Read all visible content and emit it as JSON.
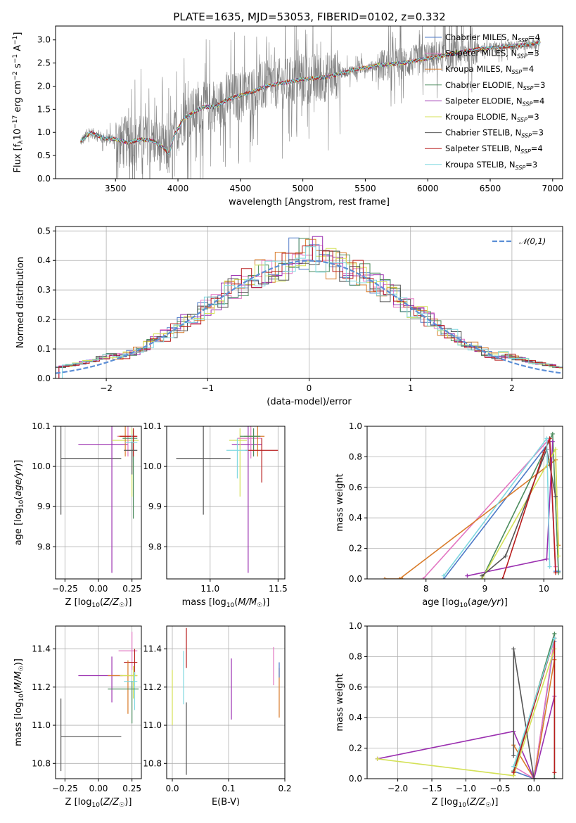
{
  "page_title": "PLATE=1635, MJD=53053, FIBERID=0102, z=0.332",
  "series": [
    {
      "name": "Chabrier MILES, N_SSP=4",
      "color": "#4e7ac7"
    },
    {
      "name": "Salpeter MILES, N_SSP=3",
      "color": "#e377c2"
    },
    {
      "name": "Kroupa MILES, N_SSP=4",
      "color": "#d97c2b"
    },
    {
      "name": "Chabrier ELODIE, N_SSP=3",
      "color": "#4c8c5e"
    },
    {
      "name": "Salpeter ELODIE, N_SSP=4",
      "color": "#9b30b0"
    },
    {
      "name": "Kroupa ELODIE, N_SSP=3",
      "color": "#d4e157"
    },
    {
      "name": "Chabrier STELIB, N_SSP=3",
      "color": "#555555"
    },
    {
      "name": "Salpeter STELIB, N_SSP=4",
      "color": "#b81d1d"
    },
    {
      "name": "Kroupa STELIB, N_SSP=3",
      "color": "#80d8e0"
    }
  ],
  "chart_data": [
    {
      "id": "spectrum",
      "type": "line",
      "title": "PLATE=1635, MJD=53053, FIBERID=0102, z=0.332",
      "xlabel": "wavelength [Angstrom, rest frame]",
      "ylabel": "Flux [f_λ 10^-17 erg cm^-2 s^-1 A^-1]",
      "xlim": [
        3020,
        7080
      ],
      "ylim": [
        0,
        3.3
      ],
      "xticks": [
        3500,
        4000,
        4500,
        5000,
        5500,
        6000,
        6500,
        7000
      ],
      "yticks": [
        0.0,
        0.5,
        1.0,
        1.5,
        2.0,
        2.5,
        3.0
      ],
      "data_range": [
        3220,
        6900
      ],
      "model_continuum": [
        [
          3220,
          0.8
        ],
        [
          3300,
          1.0
        ],
        [
          3400,
          0.88
        ],
        [
          3500,
          0.85
        ],
        [
          3600,
          0.78
        ],
        [
          3700,
          0.85
        ],
        [
          3800,
          0.82
        ],
        [
          3860,
          0.72
        ],
        [
          3930,
          0.55
        ],
        [
          3970,
          0.95
        ],
        [
          4050,
          1.3
        ],
        [
          4200,
          1.55
        ],
        [
          4300,
          1.55
        ],
        [
          4400,
          1.72
        ],
        [
          4500,
          1.8
        ],
        [
          4600,
          1.88
        ],
        [
          4700,
          2.0
        ],
        [
          4800,
          2.05
        ],
        [
          4900,
          2.1
        ],
        [
          5000,
          2.15
        ],
        [
          5200,
          2.2
        ],
        [
          5400,
          2.35
        ],
        [
          5600,
          2.45
        ],
        [
          5800,
          2.5
        ],
        [
          6000,
          2.6
        ],
        [
          6200,
          2.7
        ],
        [
          6400,
          2.8
        ],
        [
          6600,
          2.85
        ],
        [
          6800,
          2.9
        ],
        [
          6900,
          2.95
        ]
      ],
      "legend_position": "upper right"
    },
    {
      "id": "residual-histogram",
      "type": "bar",
      "xlabel": "(data-model)/error",
      "ylabel": "Normed distribution",
      "xlim": [
        -2.5,
        2.5
      ],
      "ylim": [
        0,
        0.515
      ],
      "xticks": [
        -2,
        -1,
        0,
        1,
        2
      ],
      "yticks": [
        0.0,
        0.1,
        0.2,
        0.3,
        0.4,
        0.5
      ],
      "bin_width": 0.1,
      "gaussian_label": "𝒩(0,1)",
      "legend_position": "upper right",
      "grid": true
    },
    {
      "id": "age-vs-Z",
      "type": "scatter",
      "xlabel": "Z [log10(Z/Z☉)]",
      "ylabel": "age [log10(age/yr)]",
      "xlim": [
        -0.32,
        0.32
      ],
      "ylim": [
        9.72,
        10.1
      ],
      "xticks": [
        -0.25,
        0.0,
        0.25
      ],
      "xtick_labels": [
        "−0.25",
        "0.00",
        "0.25"
      ],
      "yticks": [
        9.8,
        9.9,
        10.0,
        10.1
      ],
      "points": [
        {
          "s": 6,
          "x": -0.28,
          "y": 10.02,
          "xerr": [
            0,
            0.45
          ],
          "yerr": [
            0.14,
            0.12
          ]
        },
        {
          "s": 4,
          "x": 0.1,
          "y": 10.055,
          "xerr": [
            0.25,
            0.12
          ],
          "yerr": [
            0.32,
            0.05
          ]
        },
        {
          "s": 5,
          "x": 0.25,
          "y": 10.065,
          "xerr": [
            0.15,
            0.05
          ],
          "yerr": [
            0.14,
            0.03
          ]
        },
        {
          "s": 1,
          "x": 0.22,
          "y": 10.075,
          "xerr": [
            0.08,
            0.05
          ],
          "yerr": [
            0.05,
            0.03
          ]
        },
        {
          "s": 2,
          "x": 0.2,
          "y": 10.075,
          "xerr": [
            0.05,
            0.08
          ],
          "yerr": [
            0.05,
            0.03
          ]
        },
        {
          "s": 3,
          "x": 0.26,
          "y": 10.07,
          "xerr": [
            0.08,
            0.03
          ],
          "yerr": [
            0.2,
            0.02
          ]
        },
        {
          "s": 7,
          "x": 0.26,
          "y": 10.075,
          "xerr": [
            0.1,
            0.03
          ],
          "yerr": [
            0.05,
            0.02
          ]
        },
        {
          "s": 8,
          "x": 0.25,
          "y": 10.06,
          "xerr": [
            0.05,
            0.04
          ],
          "yerr": [
            0.05,
            0.02
          ]
        },
        {
          "s": 6,
          "x": 0.25,
          "y": 10.04,
          "xerr": [
            0.06,
            0.04
          ],
          "yerr": [
            0.06,
            0.02
          ]
        }
      ],
      "grid": true
    },
    {
      "id": "age-vs-mass",
      "type": "scatter",
      "xlabel": "mass [log10(M/M☉)]",
      "ylabel": "",
      "xlim": [
        10.68,
        11.55
      ],
      "ylim": [
        9.72,
        10.1
      ],
      "xticks": [
        11.0,
        11.5
      ],
      "xtick_labels": [
        "11.0",
        "11.5"
      ],
      "yticks": [
        9.8,
        9.9,
        10.0,
        10.1
      ],
      "points": [
        {
          "s": 6,
          "x": 10.95,
          "y": 10.02,
          "xerr": [
            0.2,
            0.2
          ],
          "yerr": [
            0.14,
            0.12
          ]
        },
        {
          "s": 4,
          "x": 11.28,
          "y": 10.055,
          "xerr": [
            0.12,
            0.1
          ],
          "yerr": [
            0.32,
            0.05
          ]
        },
        {
          "s": 5,
          "x": 11.22,
          "y": 10.065,
          "xerr": [
            0.08,
            0.05
          ],
          "yerr": [
            0.14,
            0.03
          ]
        },
        {
          "s": 1,
          "x": 11.3,
          "y": 10.07,
          "xerr": [
            0.1,
            0.08
          ],
          "yerr": [
            0.05,
            0.03
          ]
        },
        {
          "s": 2,
          "x": 11.35,
          "y": 10.075,
          "xerr": [
            0.1,
            0.05
          ],
          "yerr": [
            0.05,
            0.03
          ]
        },
        {
          "s": 3,
          "x": 11.32,
          "y": 10.075,
          "xerr": [
            0.1,
            0.05
          ],
          "yerr": [
            0.05,
            0.02
          ]
        },
        {
          "s": 7,
          "x": 11.38,
          "y": 10.04,
          "xerr": [
            0.12,
            0.12
          ],
          "yerr": [
            0.08,
            0.03
          ]
        },
        {
          "s": 8,
          "x": 11.2,
          "y": 10.04,
          "xerr": [
            0.08,
            0.08
          ],
          "yerr": [
            0.07,
            0.03
          ]
        }
      ],
      "grid": true
    },
    {
      "id": "massweight-vs-age",
      "type": "line",
      "xlabel": "age [log10(age/yr)]",
      "ylabel": "mass weight",
      "xlim": [
        7.0,
        10.32
      ],
      "ylim": [
        0,
        1
      ],
      "xticks": [
        8,
        9,
        10
      ],
      "yticks": [
        0.0,
        0.2,
        0.4,
        0.6,
        0.8,
        1.0
      ],
      "lines": [
        {
          "s": 0,
          "pts": [
            [
              8.3,
              0.0
            ],
            [
              10.1,
              0.9
            ],
            [
              10.2,
              0.05
            ],
            [
              10.25,
              0.05
            ]
          ]
        },
        {
          "s": 1,
          "pts": [
            [
              7.95,
              0.0
            ],
            [
              10.1,
              0.92
            ],
            [
              10.2,
              0.08
            ]
          ]
        },
        {
          "s": 2,
          "pts": [
            [
              7.55,
              0.0
            ],
            [
              10.2,
              0.78
            ],
            [
              10.25,
              0.22
            ]
          ]
        },
        {
          "s": 2,
          "pts": [
            [
              7.3,
              0.0
            ],
            [
              7.6,
              0.0
            ]
          ]
        },
        {
          "s": 3,
          "pts": [
            [
              8.95,
              0.0
            ],
            [
              10.15,
              0.95
            ],
            [
              10.25,
              0.04
            ]
          ]
        },
        {
          "s": 4,
          "pts": [
            [
              8.7,
              0.02
            ],
            [
              10.05,
              0.13
            ],
            [
              10.15,
              0.9
            ]
          ]
        },
        {
          "s": 5,
          "pts": [
            [
              8.95,
              0.0
            ],
            [
              10.2,
              0.85
            ],
            [
              10.25,
              0.15
            ]
          ]
        },
        {
          "s": 6,
          "pts": [
            [
              8.95,
              0.02
            ],
            [
              9.35,
              0.15
            ],
            [
              10.05,
              0.85
            ],
            [
              10.2,
              0.54
            ]
          ]
        },
        {
          "s": 7,
          "pts": [
            [
              9.3,
              0.0
            ],
            [
              10.0,
              0.83
            ],
            [
              10.1,
              0.92
            ],
            [
              10.2,
              0.04
            ]
          ]
        },
        {
          "s": 8,
          "pts": [
            [
              8.3,
              0.02
            ],
            [
              10.05,
              0.92
            ],
            [
              10.1,
              0.08
            ]
          ]
        }
      ],
      "grid": true
    },
    {
      "id": "mass-vs-Z",
      "type": "scatter",
      "xlabel": "Z [log10(Z/Z☉)]",
      "ylabel": "mass [log10(M/M☉)]",
      "xlim": [
        -0.32,
        0.32
      ],
      "ylim": [
        10.72,
        11.52
      ],
      "xticks": [
        -0.25,
        0.0,
        0.25
      ],
      "xtick_labels": [
        "−0.25",
        "0.00",
        "0.25"
      ],
      "yticks": [
        10.8,
        11.0,
        11.2,
        11.4
      ],
      "points": [
        {
          "s": 6,
          "x": -0.28,
          "y": 10.94,
          "xerr": [
            0,
            0.45
          ],
          "yerr": [
            0.18,
            0.2
          ]
        },
        {
          "s": 4,
          "x": 0.1,
          "y": 11.26,
          "xerr": [
            0.25,
            0.08
          ],
          "yerr": [
            0.14,
            0.1
          ]
        },
        {
          "s": 1,
          "x": 0.25,
          "y": 11.39,
          "xerr": [
            0.1,
            0.04
          ],
          "yerr": [
            0.1,
            0.1
          ]
        },
        {
          "s": 7,
          "x": 0.27,
          "y": 11.33,
          "xerr": [
            0.08,
            0.02
          ],
          "yerr": [
            0.07,
            0.07
          ]
        },
        {
          "s": 2,
          "x": 0.22,
          "y": 11.26,
          "xerr": [
            0.15,
            0.07
          ],
          "yerr": [
            0.2,
            0.08
          ]
        },
        {
          "s": 5,
          "x": 0.26,
          "y": 11.26,
          "xerr": [
            0.1,
            0.03
          ],
          "yerr": [
            0.12,
            0.05
          ]
        },
        {
          "s": 8,
          "x": 0.27,
          "y": 11.23,
          "xerr": [
            0.08,
            0.02
          ],
          "yerr": [
            0.15,
            0.05
          ]
        },
        {
          "s": 3,
          "x": 0.25,
          "y": 11.19,
          "xerr": [
            0.18,
            0.05
          ],
          "yerr": [
            0.18,
            0.04
          ]
        }
      ],
      "grid": true
    },
    {
      "id": "mass-vs-EBV",
      "type": "scatter",
      "xlabel": "E(B-V)",
      "ylabel": "",
      "xlim": [
        -0.01,
        0.2
      ],
      "ylim": [
        10.72,
        11.52
      ],
      "xticks": [
        0.0,
        0.1,
        0.2
      ],
      "xtick_labels": [
        "0.0",
        "0.1",
        "0.2"
      ],
      "yticks": [
        10.8,
        11.0,
        11.2,
        11.4
      ],
      "points": [
        {
          "s": 5,
          "x": 0.0,
          "y": 11.15,
          "xerr": [
            0,
            0
          ],
          "yerr": [
            0.15,
            0.14
          ]
        },
        {
          "s": 8,
          "x": 0.02,
          "y": 11.25,
          "xerr": [
            0,
            0
          ],
          "yerr": [
            0.14,
            0.14
          ]
        },
        {
          "s": 7,
          "x": 0.025,
          "y": 11.38,
          "xerr": [
            0,
            0
          ],
          "yerr": [
            0.08,
            0.13
          ]
        },
        {
          "s": 6,
          "x": 0.025,
          "y": 10.94,
          "xerr": [
            0,
            0
          ],
          "yerr": [
            0.2,
            0.18
          ]
        },
        {
          "s": 4,
          "x": 0.105,
          "y": 11.18,
          "xerr": [
            0,
            0
          ],
          "yerr": [
            0.15,
            0.17
          ]
        },
        {
          "s": 1,
          "x": 0.18,
          "y": 11.31,
          "xerr": [
            0,
            0
          ],
          "yerr": [
            0.1,
            0.1
          ]
        },
        {
          "s": 2,
          "x": 0.19,
          "y": 11.17,
          "xerr": [
            0,
            0
          ],
          "yerr": [
            0.13,
            0.13
          ]
        },
        {
          "s": 0,
          "x": 0.19,
          "y": 11.29,
          "xerr": [
            0,
            0
          ],
          "yerr": [
            0.04,
            0.04
          ]
        }
      ],
      "grid": true
    },
    {
      "id": "massweight-vs-Z",
      "type": "line",
      "xlabel": "Z [log10(Z/Z☉)]",
      "ylabel": "mass weight",
      "xlim": [
        -2.45,
        0.42
      ],
      "ylim": [
        0,
        1
      ],
      "xticks": [
        -2.0,
        -1.5,
        -1.0,
        -0.5,
        0.0
      ],
      "xtick_labels": [
        "−2.0",
        "−1.5",
        "−1.0",
        "−0.5",
        "0.0"
      ],
      "yticks": [
        0.0,
        0.2,
        0.4,
        0.6,
        0.8,
        1.0
      ],
      "lines": [
        {
          "s": 0,
          "pts": [
            [
              -0.3,
              0.05
            ],
            [
              0.0,
              0.0
            ],
            [
              0.3,
              0.9
            ]
          ]
        },
        {
          "s": 1,
          "pts": [
            [
              -0.3,
              0.08
            ],
            [
              0.0,
              0.0
            ],
            [
              0.3,
              0.92
            ]
          ]
        },
        {
          "s": 2,
          "pts": [
            [
              -0.3,
              0.22
            ],
            [
              0.0,
              0.0
            ],
            [
              0.3,
              0.78
            ]
          ]
        },
        {
          "s": 3,
          "pts": [
            [
              -0.3,
              0.05
            ],
            [
              0.3,
              0.95
            ],
            [
              0.3,
              0.0
            ]
          ]
        },
        {
          "s": 4,
          "pts": [
            [
              -2.3,
              0.13
            ],
            [
              -0.3,
              0.31
            ],
            [
              0.0,
              0.0
            ],
            [
              0.3,
              0.54
            ]
          ]
        },
        {
          "s": 5,
          "pts": [
            [
              -2.3,
              0.13
            ],
            [
              -0.3,
              0.02
            ],
            [
              0.3,
              0.85
            ]
          ]
        },
        {
          "s": 6,
          "pts": [
            [
              -0.3,
              0.15
            ],
            [
              -0.3,
              0.85
            ],
            [
              0.0,
              0.0
            ],
            [
              0.3,
              0.0
            ]
          ]
        },
        {
          "s": 7,
          "pts": [
            [
              -0.3,
              0.04
            ],
            [
              0.3,
              0.92
            ],
            [
              0.3,
              0.04
            ]
          ]
        },
        {
          "s": 8,
          "pts": [
            [
              -0.3,
              0.08
            ],
            [
              0.3,
              0.92
            ]
          ]
        }
      ],
      "grid": true
    }
  ]
}
